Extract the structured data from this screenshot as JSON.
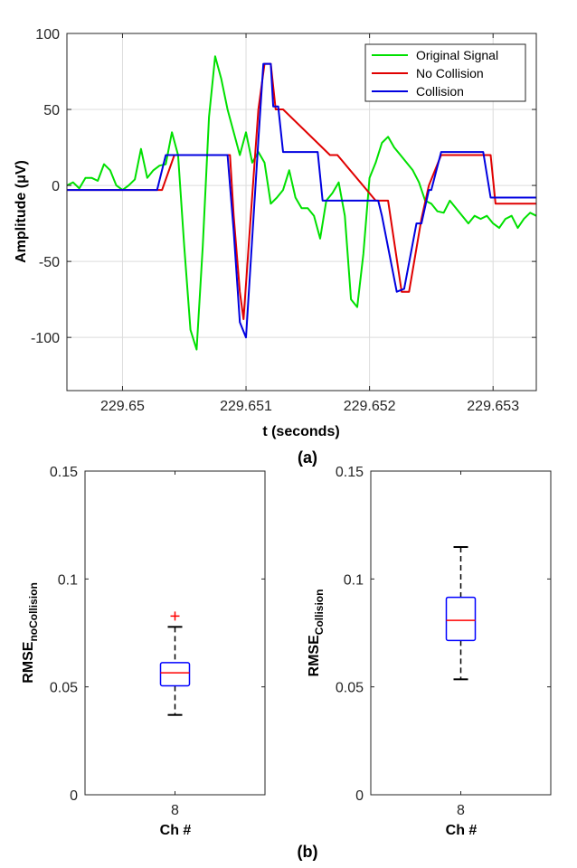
{
  "chart_data": [
    {
      "type": "line",
      "panel_label": "(a)",
      "xlabel": "t (seconds)",
      "ylabel": "Amplitude (μV)",
      "xlim": [
        229.64955,
        229.65335
      ],
      "ylim": [
        -135,
        100
      ],
      "xticks": [
        229.65,
        229.651,
        229.652,
        229.653
      ],
      "xtick_labels": [
        "229.65",
        "229.651",
        "229.652",
        "229.653"
      ],
      "yticks": [
        100,
        50,
        0,
        -50,
        -100
      ],
      "ytick_labels": [
        "100",
        "50",
        "0",
        "-50",
        "-100"
      ],
      "legend_position": "top-right",
      "series": [
        {
          "name": "Original Signal",
          "color": "#00e000",
          "x": [
            229.64955,
            229.6496,
            229.64965,
            229.6497,
            229.64975,
            229.6498,
            229.64985,
            229.6499,
            229.64995,
            229.65,
            229.65005,
            229.6501,
            229.65015,
            229.6502,
            229.65025,
            229.6503,
            229.65035,
            229.6504,
            229.65045,
            229.6505,
            229.65055,
            229.6506,
            229.65065,
            229.6507,
            229.65075,
            229.6508,
            229.65085,
            229.6509,
            229.65095,
            229.651,
            229.65105,
            229.6511,
            229.65115,
            229.6512,
            229.65125,
            229.6513,
            229.65135,
            229.6514,
            229.65145,
            229.6515,
            229.65155,
            229.6516,
            229.65165,
            229.6517,
            229.65175,
            229.6518,
            229.65185,
            229.6519,
            229.65195,
            229.652,
            229.65205,
            229.6521,
            229.65215,
            229.6522,
            229.65225,
            229.6523,
            229.65235,
            229.6524,
            229.65245,
            229.6525,
            229.65255,
            229.6526,
            229.65265,
            229.6527,
            229.65275,
            229.6528,
            229.65285,
            229.6529,
            229.65295,
            229.653,
            229.65305,
            229.6531,
            229.65315,
            229.6532,
            229.65325,
            229.6533,
            229.65335
          ],
          "y": [
            0,
            2,
            -2,
            5,
            5,
            3,
            14,
            10,
            0,
            -3,
            0,
            4,
            24,
            5,
            10,
            13,
            14,
            35,
            20,
            -40,
            -95,
            -108,
            -40,
            45,
            85,
            70,
            50,
            35,
            20,
            35,
            15,
            22,
            15,
            -12,
            -8,
            -3,
            10,
            -8,
            -15,
            -15,
            -20,
            -35,
            -10,
            -5,
            2,
            -20,
            -75,
            -80,
            -45,
            5,
            15,
            28,
            32,
            25,
            20,
            15,
            10,
            2,
            -10,
            -12,
            -17,
            -18,
            -10,
            -15,
            -20,
            -25,
            -20,
            -22,
            -20,
            -25,
            -28,
            -22,
            -20,
            -28,
            -22,
            -18,
            -20
          ]
        },
        {
          "name": "No Collision",
          "color": "#e00000",
          "x": [
            229.64955,
            229.65032,
            229.65042,
            229.65087,
            229.6509,
            229.65095,
            229.65098,
            229.65103,
            229.6511,
            229.65115,
            229.6512,
            229.65124,
            229.6513,
            229.65168,
            229.65174,
            229.65205,
            229.6521,
            229.65215,
            229.65226,
            229.65232,
            229.65242,
            229.65248,
            229.65258,
            229.65298,
            229.65302,
            229.65335
          ],
          "y": [
            -3,
            -3,
            20,
            20,
            -20,
            -70,
            -88,
            -30,
            50,
            80,
            80,
            50,
            50,
            20,
            20,
            -10,
            -10,
            -10,
            -70,
            -70,
            -22,
            0,
            20,
            20,
            -12,
            -12
          ]
        },
        {
          "name": "Collision",
          "color": "#0000e0",
          "x": [
            229.64955,
            229.65028,
            229.65035,
            229.65085,
            229.6509,
            229.65095,
            229.651,
            229.6511,
            229.65114,
            229.6512,
            229.65122,
            229.65126,
            229.6513,
            229.65158,
            229.65162,
            229.65202,
            229.65207,
            229.6521,
            229.65222,
            229.65228,
            229.65238,
            229.65242,
            229.65248,
            229.6525,
            229.65258,
            229.65292,
            229.65298,
            229.65335
          ],
          "y": [
            -3,
            -3,
            20,
            20,
            -30,
            -90,
            -100,
            30,
            80,
            80,
            52,
            52,
            22,
            22,
            -10,
            -10,
            -10,
            -20,
            -70,
            -68,
            -25,
            -25,
            -3,
            -3,
            22,
            22,
            -8,
            -8
          ]
        }
      ]
    },
    {
      "type": "box",
      "xlabel": "Ch #",
      "ylabel_main": "RMSE",
      "ylabel_sub": "noCollision",
      "category": "8",
      "ylim": [
        0,
        0.15
      ],
      "yticks": [
        0,
        0.05,
        0.1,
        0.15
      ],
      "ytick_labels": [
        "0",
        "0.05",
        "0.1",
        "0.15"
      ],
      "stats": {
        "whisker_low": 0.037,
        "q1": 0.0505,
        "median": 0.0565,
        "q3": 0.0612,
        "whisker_high": 0.0778,
        "outliers": [
          0.0828
        ]
      },
      "box_color": "#0000ff",
      "median_color": "#ff0000",
      "outlier_marker": "+",
      "outlier_color": "#ff0000"
    },
    {
      "type": "box",
      "xlabel": "Ch #",
      "ylabel_main": "RMSE",
      "ylabel_sub": "Collision",
      "category": "8",
      "ylim": [
        0,
        0.15
      ],
      "yticks": [
        0,
        0.05,
        0.1,
        0.15
      ],
      "ytick_labels": [
        "0",
        "0.05",
        "0.1",
        "0.15"
      ],
      "stats": {
        "whisker_low": 0.0535,
        "q1": 0.0715,
        "median": 0.0808,
        "q3": 0.0915,
        "whisker_high": 0.1148,
        "outliers": []
      },
      "box_color": "#0000ff",
      "median_color": "#ff0000"
    }
  ],
  "captions": {
    "a": "(a)",
    "b": "(b)"
  }
}
